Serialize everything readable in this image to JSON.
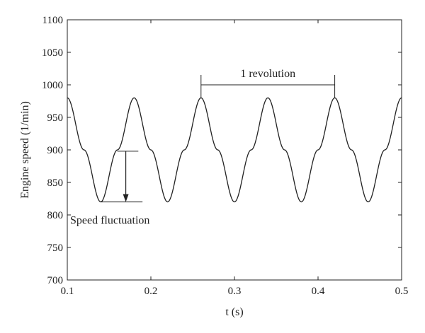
{
  "chart_data": {
    "type": "line",
    "title": "",
    "xlabel": "t (s)",
    "ylabel": "Engine speed (1/min)",
    "xlim": [
      0.1,
      0.5
    ],
    "ylim": [
      700,
      1100
    ],
    "xticks": [
      0.1,
      0.2,
      0.3,
      0.4,
      0.5
    ],
    "xtick_labels": [
      "0.1",
      "0.2",
      "0.3",
      "0.4",
      "0.5"
    ],
    "yticks": [
      700,
      750,
      800,
      850,
      900,
      950,
      1000,
      1050,
      1100
    ],
    "ytick_labels": [
      "700",
      "750",
      "800",
      "850",
      "900",
      "950",
      "1000",
      "1050",
      "1100"
    ],
    "grid": false,
    "legend": "none",
    "series": [
      {
        "color": "#222222",
        "x": [
          0.1,
          0.12,
          0.14,
          0.16,
          0.18,
          0.2,
          0.22,
          0.24,
          0.26,
          0.28,
          0.3,
          0.32,
          0.34,
          0.36,
          0.38,
          0.4,
          0.42,
          0.44,
          0.46,
          0.48,
          0.5
        ],
        "y": [
          980,
          900,
          820,
          900,
          980,
          900,
          820,
          900,
          980,
          900,
          820,
          900,
          980,
          900,
          820,
          900,
          980,
          900,
          820,
          900,
          980
        ]
      }
    ],
    "annotations": [
      {
        "id": "revolution",
        "text": "1 revolution",
        "x_start": 0.26,
        "x_end": 0.42,
        "y": 1000
      },
      {
        "id": "fluctuation",
        "text": "Speed fluctuation",
        "x": 0.17,
        "y_from": 898,
        "y_to": 820
      }
    ]
  }
}
